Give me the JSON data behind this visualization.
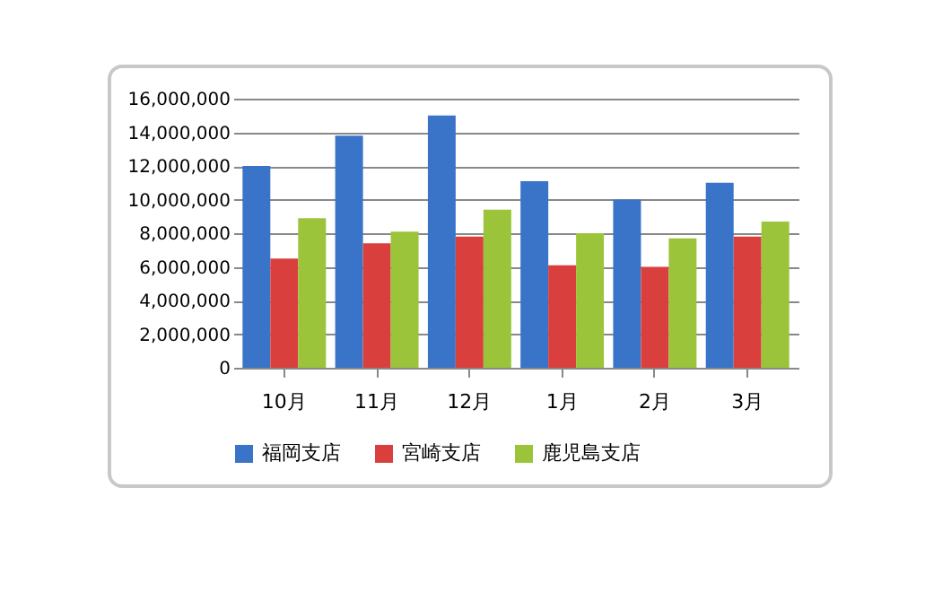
{
  "chart_data": {
    "type": "bar",
    "categories": [
      "10月",
      "11月",
      "12月",
      "1月",
      "2月",
      "3月"
    ],
    "series": [
      {
        "name": "福岡支店",
        "color": "#3a74c8",
        "values": [
          12000000,
          13800000,
          15000000,
          11100000,
          10000000,
          11000000
        ]
      },
      {
        "name": "宮崎支店",
        "color": "#d9403d",
        "values": [
          6500000,
          7400000,
          7800000,
          6100000,
          6000000,
          7800000
        ]
      },
      {
        "name": "鹿児島支店",
        "color": "#9bc43a",
        "values": [
          8900000,
          8100000,
          9400000,
          8000000,
          7700000,
          8700000
        ]
      }
    ],
    "ylim": [
      0,
      16000000
    ],
    "yticks": [
      0,
      {
        "value": 2000000,
        "label": "2,000,000"
      },
      {
        "value": 4000000,
        "label": "4,000,000"
      },
      {
        "value": 6000000,
        "label": "6,000,000"
      },
      {
        "value": 8000000,
        "label": "8,000,000"
      },
      {
        "value": 10000000,
        "label": "10,000,000"
      },
      {
        "value": 12000000,
        "label": "12,000,000"
      },
      {
        "value": 14000000,
        "label": "14,000,000"
      },
      {
        "value": 16000000,
        "label": "16,000,000"
      }
    ],
    "grid": "y",
    "legend": "bottom"
  }
}
